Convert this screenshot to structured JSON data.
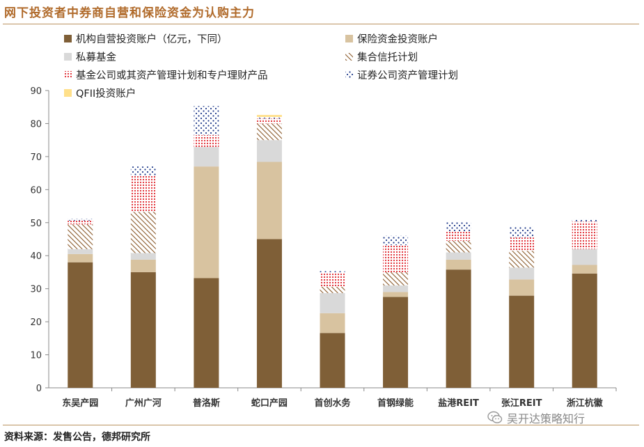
{
  "header": {
    "title": "网下投资者中券商自营和保险资金为认购主力"
  },
  "footer": {
    "source": "资料来源：发售公告，德邦研究所",
    "watermark": "吴开达策略知行",
    "watermark_icon": "wechat-icon"
  },
  "chart_data": {
    "type": "bar",
    "stacked": true,
    "title": "",
    "xlabel": "",
    "ylabel": "",
    "ylim": [
      0,
      90
    ],
    "yticks": [
      0,
      10,
      20,
      30,
      40,
      50,
      60,
      70,
      80,
      90
    ],
    "grid": false,
    "legend_position": "top-left",
    "categories": [
      "东吴产园",
      "广州广河",
      "普洛斯",
      "蛇口产园",
      "首创水务",
      "首钢绿能",
      "盐港REIT",
      "张江REIT",
      "浙江杭徽"
    ],
    "series": [
      {
        "name": "机构自营投资账户（亿元，下同）",
        "color": "#7f5f37",
        "pattern": "solid",
        "values": [
          38.0,
          35.0,
          33.2,
          45.0,
          16.6,
          27.5,
          35.8,
          27.9,
          34.6
        ]
      },
      {
        "name": "保险资金投资账户",
        "color": "#d8c3a0",
        "pattern": "solid",
        "values": [
          2.5,
          3.8,
          33.8,
          23.4,
          6.0,
          1.5,
          3.0,
          4.9,
          2.6
        ]
      },
      {
        "name": "私募基金",
        "color": "#d9d9d9",
        "pattern": "solid",
        "values": [
          1.5,
          2.0,
          5.9,
          6.6,
          6.1,
          2.0,
          2.2,
          3.6,
          4.8
        ]
      },
      {
        "name": "集合信托计划",
        "color": "#8b5a2b",
        "pattern": "diagonal",
        "values": [
          7.5,
          12.5,
          0.0,
          5.0,
          1.9,
          4.0,
          3.5,
          5.1,
          0.0
        ]
      },
      {
        "name": "基金公司或其资产管理计划和专户理财产品",
        "color": "#e0252c",
        "pattern": "dots",
        "values": [
          1.1,
          11.0,
          3.6,
          1.5,
          4.4,
          8.2,
          2.7,
          4.0,
          8.3
        ]
      },
      {
        "name": "证券公司资产管理计划",
        "color": "#1f3a8a",
        "pattern": "sparse-dots",
        "values": [
          0.6,
          2.7,
          8.8,
          0.5,
          0.5,
          2.8,
          3.1,
          3.4,
          0.8
        ]
      },
      {
        "name": "QFII投资账户",
        "color": "#ffe08a",
        "pattern": "solid",
        "values": [
          0.0,
          0.0,
          0.0,
          0.6,
          0.0,
          0.0,
          0.0,
          0.0,
          0.0
        ]
      }
    ]
  }
}
